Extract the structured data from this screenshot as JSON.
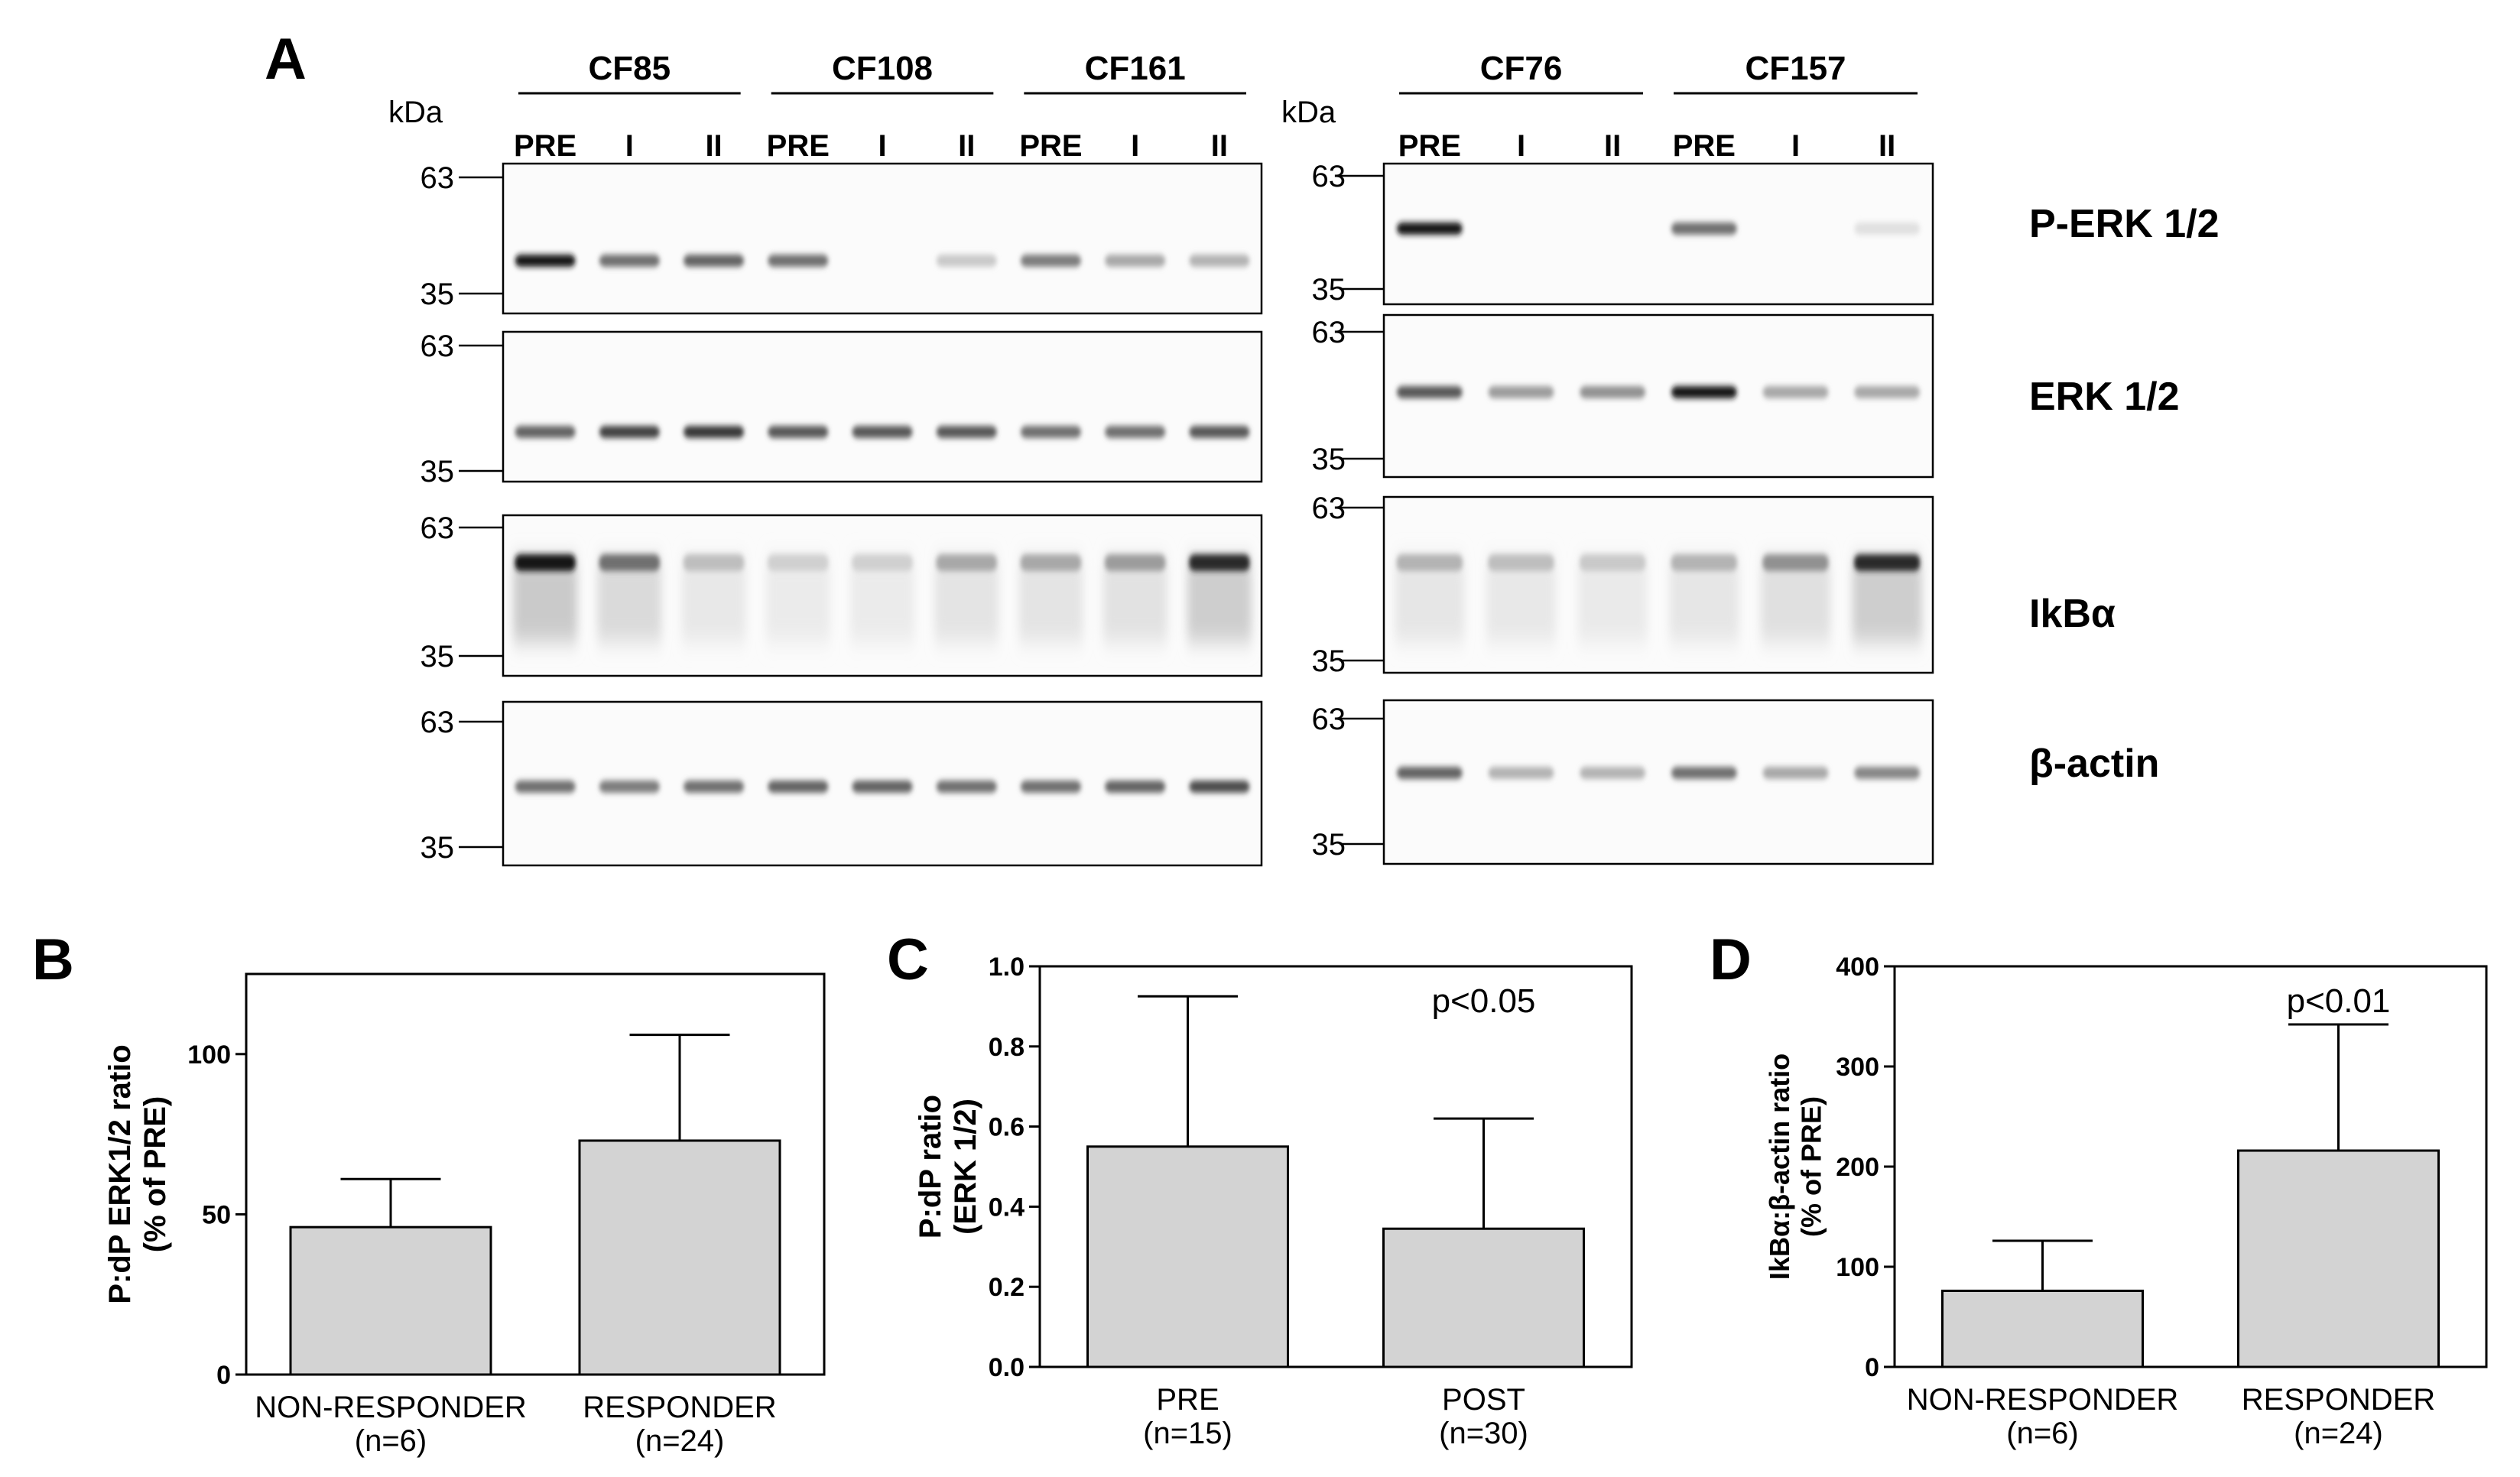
{
  "panel_a": {
    "letter": "A",
    "kda_label": "kDa",
    "left_groups": [
      {
        "name": "CF85",
        "lanes": [
          "PRE",
          "I",
          "II"
        ]
      },
      {
        "name": "CF108",
        "lanes": [
          "PRE",
          "I",
          "II"
        ]
      },
      {
        "name": "CF161",
        "lanes": [
          "PRE",
          "I",
          "II"
        ]
      }
    ],
    "right_groups": [
      {
        "name": "CF76",
        "lanes": [
          "PRE",
          "I",
          "II"
        ]
      },
      {
        "name": "CF157",
        "lanes": [
          "PRE",
          "I",
          "II"
        ]
      }
    ],
    "markers": [
      "63",
      "35"
    ],
    "blots": [
      "P-ERK 1/2",
      "ERK 1/2",
      "IkBα",
      "β-actin"
    ],
    "band_intensity": {
      "left": [
        [
          0.95,
          0.55,
          0.6,
          0.55,
          0.0,
          0.15,
          0.5,
          0.3,
          0.25
        ],
        [
          0.6,
          0.75,
          0.8,
          0.65,
          0.65,
          0.65,
          0.55,
          0.55,
          0.65
        ],
        [
          0.95,
          0.55,
          0.2,
          0.12,
          0.12,
          0.3,
          0.3,
          0.35,
          0.85
        ],
        [
          0.55,
          0.5,
          0.55,
          0.6,
          0.6,
          0.55,
          0.55,
          0.6,
          0.7
        ]
      ],
      "right": [
        [
          0.95,
          0.0,
          0.0,
          0.55,
          0.0,
          0.05
        ],
        [
          0.65,
          0.35,
          0.4,
          0.95,
          0.3,
          0.3
        ],
        [
          0.25,
          0.2,
          0.15,
          0.25,
          0.4,
          0.85
        ],
        [
          0.6,
          0.25,
          0.25,
          0.55,
          0.3,
          0.45
        ]
      ]
    }
  },
  "panel_b": {
    "letter": "B",
    "chart_data": {
      "type": "bar",
      "categories": [
        "NON-RESPONDER\n(n=6)",
        "RESPONDER\n(n=24)"
      ],
      "category_lines": [
        [
          "NON-RESPONDER",
          "(n=6)"
        ],
        [
          "RESPONDER",
          "(n=24)"
        ]
      ],
      "values": [
        46,
        73
      ],
      "error_upper": [
        61,
        106
      ],
      "ylabel_lines": [
        "P:dP ERK1/2 ratio",
        "(% of PRE)"
      ],
      "ylim": [
        0,
        125
      ],
      "yticks": [
        0,
        50,
        100
      ],
      "annotation": "",
      "bar_color": "#d3d3d3"
    }
  },
  "panel_c": {
    "letter": "C",
    "chart_data": {
      "type": "bar",
      "categories": [
        "PRE\n(n=15)",
        "POST\n(n=30)"
      ],
      "category_lines": [
        [
          "PRE",
          "(n=15)"
        ],
        [
          "POST",
          "(n=30)"
        ]
      ],
      "values": [
        0.55,
        0.345
      ],
      "error_upper": [
        0.925,
        0.62
      ],
      "ylabel_lines": [
        "P:dP ratio",
        "(ERK 1/2)"
      ],
      "ylim": [
        0,
        1.0
      ],
      "yticks": [
        0.0,
        0.2,
        0.4,
        0.6,
        0.8,
        1.0
      ],
      "ytick_labels": [
        "0.0",
        "0.2",
        "0.4",
        "0.6",
        "0.8",
        "1.0"
      ],
      "annotation": "p<0.05",
      "bar_color": "#d3d3d3"
    }
  },
  "panel_d": {
    "letter": "D",
    "chart_data": {
      "type": "bar",
      "categories": [
        "NON-RESPONDER\n(n=6)",
        "RESPONDER\n(n=24)"
      ],
      "category_lines": [
        [
          "NON-RESPONDER",
          "(n=6)"
        ],
        [
          "RESPONDER",
          "(n=24)"
        ]
      ],
      "values": [
        76,
        216
      ],
      "error_upper": [
        126,
        342
      ],
      "ylabel_lines": [
        "IkBα:β-actin ratio",
        "(% of PRE)"
      ],
      "ylim": [
        0,
        400
      ],
      "yticks": [
        0,
        100,
        200,
        300,
        400
      ],
      "annotation": "p<0.01",
      "bar_color": "#d3d3d3"
    }
  }
}
